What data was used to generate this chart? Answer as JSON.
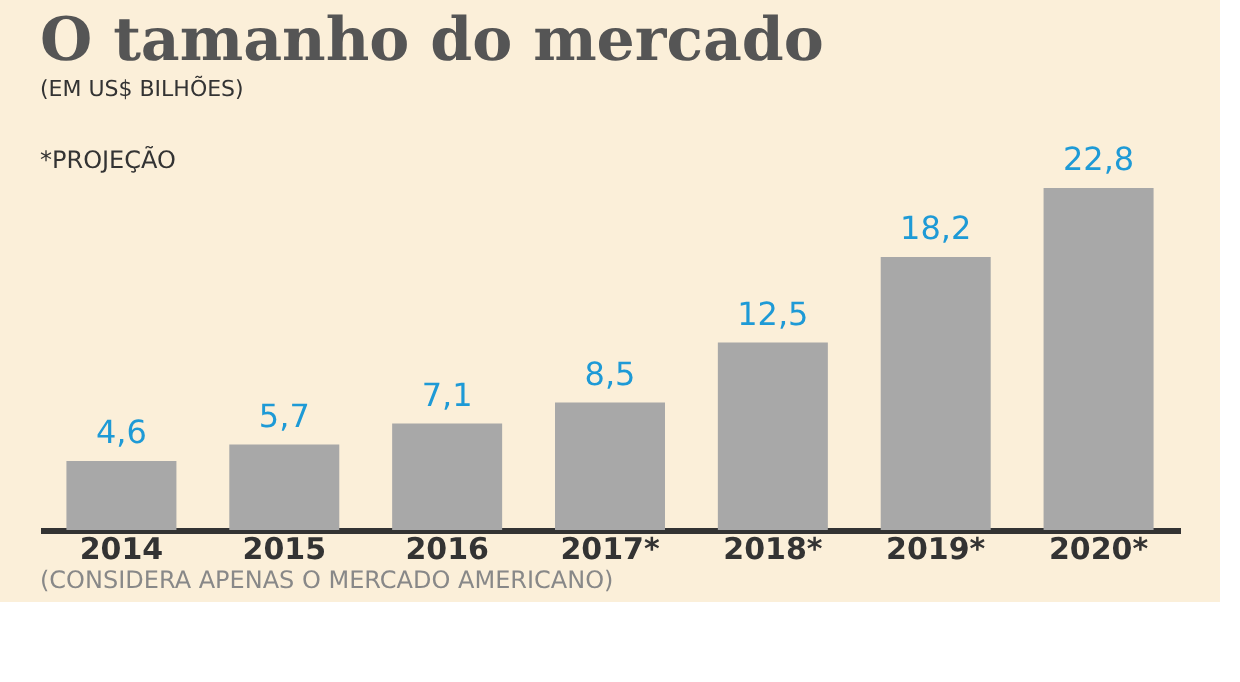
{
  "chart_data": {
    "type": "bar",
    "title": "O tamanho do mercado",
    "subtitle": "(EM US$ BILHÕES)",
    "categories": [
      "2014",
      "2015",
      "2016",
      "2017*",
      "2018*",
      "2019*",
      "2020*"
    ],
    "values": [
      4.6,
      5.7,
      7.1,
      8.5,
      12.5,
      18.2,
      22.8
    ],
    "value_labels": [
      "4,6",
      "5,7",
      "7,1",
      "8,5",
      "12,5",
      "18,2",
      "22,8"
    ],
    "color": "#a8a8a8",
    "tick_labels": "x",
    "grid": false,
    "annotations": [
      "*PROJEÇÃO",
      "(CONSIDERA APENAS O MERCADO AMERICANO)"
    ]
  }
}
